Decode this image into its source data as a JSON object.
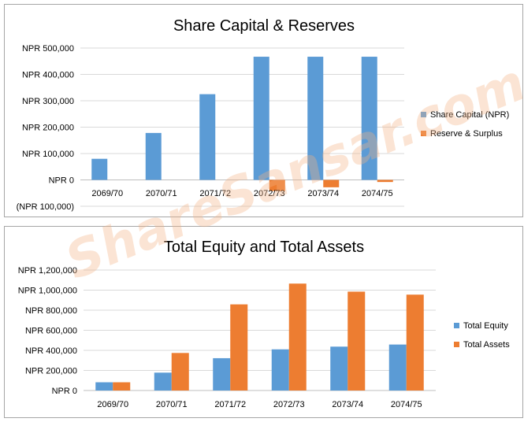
{
  "watermark": "ShareSansar.com",
  "colors": {
    "blue": "#5B9BD5",
    "orange": "#ED7D31",
    "grid": "#D9D9D9",
    "axis": "#BFBFBF",
    "text": "#000000",
    "watermark": "#F4B183"
  },
  "chart_data": [
    {
      "type": "bar",
      "title": "Share Capital & Reserves",
      "categories": [
        "2069/70",
        "2070/71",
        "2071/72",
        "2072/73",
        "2073/74",
        "2074/75"
      ],
      "series": [
        {
          "name": "Share Capital  (NPR)",
          "color": "#5B9BD5",
          "values": [
            80000,
            178000,
            325000,
            467000,
            467000,
            467000
          ]
        },
        {
          "name": "Reserve & Surplus",
          "color": "#ED7D31",
          "values": [
            0,
            0,
            0,
            -42000,
            -28000,
            -8000
          ]
        }
      ],
      "y_ticks": [
        500000,
        400000,
        300000,
        200000,
        100000,
        0,
        -100000
      ],
      "y_tick_labels": [
        "NPR 500,000",
        "NPR 400,000",
        "NPR 300,000",
        "NPR 200,000",
        "NPR 100,000",
        "NPR 0",
        "(NPR 100,000)"
      ],
      "ylim": [
        -100000,
        500000
      ],
      "xlabel": "",
      "ylabel": "",
      "grid": true,
      "legend": "right"
    },
    {
      "type": "bar",
      "title": "Total Equity and Total Assets",
      "categories": [
        "2069/70",
        "2070/71",
        "2071/72",
        "2072/73",
        "2073/74",
        "2074/75"
      ],
      "series": [
        {
          "name": "Total Equity",
          "color": "#5B9BD5",
          "values": [
            82000,
            178000,
            322000,
            410000,
            437000,
            458000
          ]
        },
        {
          "name": "Total Assets",
          "color": "#ED7D31",
          "values": [
            82000,
            374000,
            858000,
            1065000,
            985000,
            955000
          ]
        }
      ],
      "y_ticks": [
        1200000,
        1000000,
        800000,
        600000,
        400000,
        200000,
        0
      ],
      "y_tick_labels": [
        "NPR 1,200,000",
        "NPR 1,000,000",
        "NPR 800,000",
        "NPR 600,000",
        "NPR 400,000",
        "NPR 200,000",
        "NPR 0"
      ],
      "ylim": [
        0,
        1200000
      ],
      "xlabel": "",
      "ylabel": "",
      "grid": true,
      "legend": "right"
    }
  ]
}
